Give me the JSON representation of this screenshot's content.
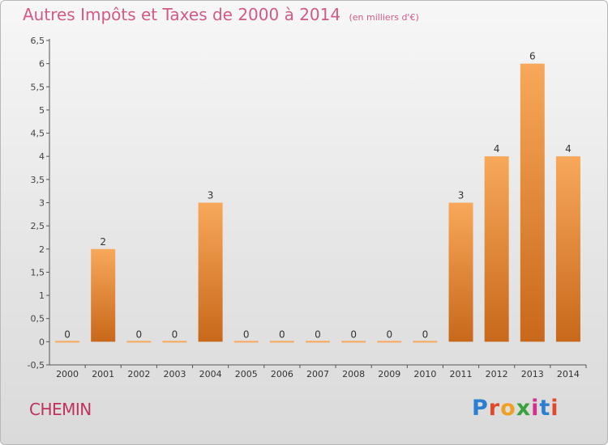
{
  "title": "Autres Impôts et Taxes de 2000 à 2014",
  "subtitle": "(en milliers d'€)",
  "commune": "CHEMIN",
  "logo": {
    "text": "Proxiti",
    "letters": [
      "P",
      "r",
      "o",
      "x",
      "i",
      "t",
      "i"
    ]
  },
  "colors": {
    "title": "#d25a86",
    "bar_top": "#f8a85a",
    "bar_bottom": "#c8681a"
  },
  "chart_data": {
    "type": "bar",
    "categories": [
      "2000",
      "2001",
      "2002",
      "2003",
      "2004",
      "2005",
      "2006",
      "2007",
      "2008",
      "2009",
      "2010",
      "2011",
      "2012",
      "2013",
      "2014"
    ],
    "values": [
      0,
      2,
      0,
      0,
      3,
      0,
      0,
      0,
      0,
      0,
      0,
      3,
      4,
      6,
      4
    ],
    "data_labels": [
      "0",
      "2",
      "0",
      "0",
      "3",
      "0",
      "0",
      "0",
      "0",
      "0",
      "0",
      "3",
      "4",
      "6",
      "4"
    ],
    "ylim": [
      -0.5,
      6.5
    ],
    "yticks": [
      -0.5,
      0,
      0.5,
      1,
      1.5,
      2,
      2.5,
      3,
      3.5,
      4,
      4.5,
      5,
      5.5,
      6,
      6.5
    ],
    "ytick_labels": [
      "-0,5",
      "0",
      "0,5",
      "1",
      "1,5",
      "2",
      "2,5",
      "3",
      "3,5",
      "4",
      "4,5",
      "5",
      "5,5",
      "6",
      "6,5"
    ],
    "grid": false,
    "xlabel": "",
    "ylabel": ""
  }
}
